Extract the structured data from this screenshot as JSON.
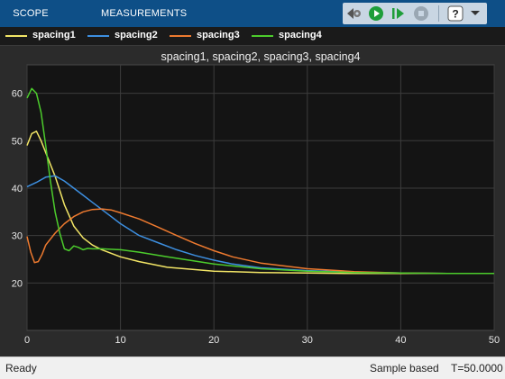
{
  "toolstrip": {
    "tabs": [
      {
        "label": "SCOPE"
      },
      {
        "label": "MEASUREMENTS"
      }
    ],
    "buttons": [
      "settings-arrow-icon",
      "run-icon",
      "step-forward-icon",
      "stop-icon",
      "help-icon",
      "expand-icon"
    ]
  },
  "legend": {
    "items": [
      {
        "label": "spacing1",
        "color": "#f2e566"
      },
      {
        "label": "spacing2",
        "color": "#3d8fe0"
      },
      {
        "label": "spacing3",
        "color": "#ee7a2f"
      },
      {
        "label": "spacing4",
        "color": "#4ccc2c"
      }
    ]
  },
  "plot": {
    "title": "spacing1, spacing2, spacing3, spacing4"
  },
  "status": {
    "left": "Ready",
    "mode": "Sample based",
    "time": "T=50.0000"
  },
  "chart_data": {
    "type": "line",
    "title": "spacing1, spacing2, spacing3, spacing4",
    "xlabel": "",
    "ylabel": "",
    "xlim": [
      0,
      50
    ],
    "ylim": [
      10,
      66
    ],
    "xticks": [
      0,
      10,
      20,
      30,
      40,
      50
    ],
    "yticks": [
      20,
      30,
      40,
      50,
      60
    ],
    "grid": true,
    "legend_position": "top",
    "series": [
      {
        "name": "spacing1",
        "color": "#f2e566",
        "x": [
          0,
          0.5,
          1,
          1.5,
          2,
          2.5,
          3,
          3.5,
          4,
          5,
          6,
          7,
          8,
          10,
          12,
          15,
          20,
          25,
          30,
          35,
          40,
          45,
          50
        ],
        "y": [
          49,
          51.5,
          52,
          50,
          47.5,
          45,
          42.5,
          39.5,
          36.5,
          32,
          29.5,
          28,
          27,
          25.5,
          24.5,
          23.3,
          22.5,
          22.2,
          22.1,
          22,
          22,
          22,
          22
        ]
      },
      {
        "name": "spacing2",
        "color": "#3d8fe0",
        "x": [
          0,
          1,
          2,
          3,
          4,
          5,
          6,
          7,
          8,
          10,
          12,
          14,
          16,
          18,
          20,
          22,
          25,
          30,
          35,
          40,
          45,
          50
        ],
        "y": [
          40.3,
          41.2,
          42.3,
          42.6,
          41.5,
          40,
          38.5,
          37,
          35.5,
          32.5,
          30,
          28.5,
          27,
          25.8,
          24.8,
          24,
          23.2,
          22.6,
          22.3,
          22.1,
          22,
          22
        ]
      },
      {
        "name": "spacing3",
        "color": "#ee7a2f",
        "x": [
          0,
          0.4,
          0.8,
          1.2,
          1.6,
          2,
          3,
          4,
          5,
          6,
          7,
          8,
          9,
          10,
          12,
          14,
          16,
          18,
          20,
          22,
          25,
          30,
          35,
          40,
          45,
          50
        ],
        "y": [
          29.8,
          26.5,
          24.3,
          24.5,
          26,
          28,
          30.5,
          32.5,
          34,
          35,
          35.5,
          35.6,
          35.4,
          34.8,
          33.5,
          31.8,
          30,
          28.3,
          26.8,
          25.5,
          24.2,
          23,
          22.4,
          22.1,
          22,
          22
        ]
      },
      {
        "name": "spacing4",
        "color": "#4ccc2c",
        "x": [
          0,
          0.5,
          1,
          1.5,
          2,
          2.5,
          3,
          3.5,
          4,
          4.5,
          5,
          5.5,
          6,
          6.5,
          7,
          8,
          10,
          12,
          15,
          20,
          25,
          30,
          35,
          40,
          45,
          50
        ],
        "y": [
          59,
          61,
          60,
          56,
          49,
          41.5,
          35,
          30.5,
          27.2,
          26.8,
          27.8,
          27.5,
          27,
          27.3,
          27.2,
          27.2,
          27,
          26.5,
          25.5,
          24,
          23,
          22.5,
          22.2,
          22.1,
          22,
          22
        ]
      }
    ]
  }
}
